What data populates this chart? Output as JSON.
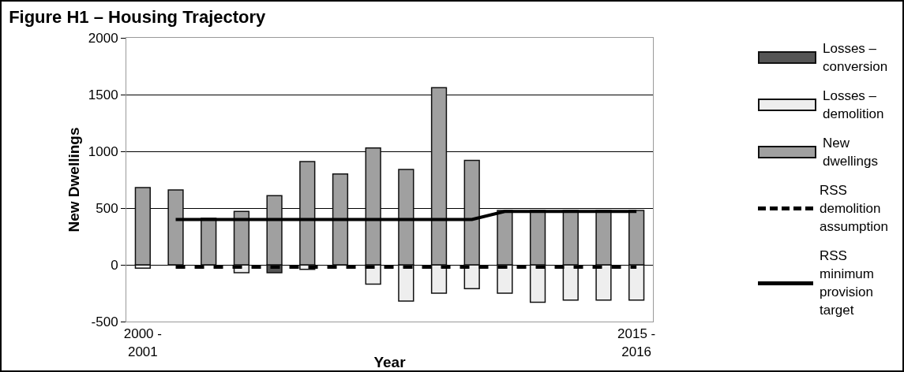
{
  "chart_data": {
    "type": "bar",
    "title": "Figure H1 – Housing Trajectory",
    "xlabel": "Year",
    "ylabel": "New Dwellings",
    "stacked": true,
    "categories": [
      "2000 - 2001",
      null,
      null,
      null,
      null,
      null,
      null,
      null,
      null,
      null,
      null,
      null,
      null,
      null,
      null,
      "2015 - 2016"
    ],
    "series": [
      {
        "name": "Losses – conversion",
        "color": "#555555",
        "values": [
          null,
          null,
          null,
          null,
          -70,
          null,
          null,
          null,
          null,
          null,
          null,
          null,
          null,
          null,
          null,
          null
        ]
      },
      {
        "name": "Losses – demolition",
        "color": "#eeeeee",
        "values": [
          -30,
          null,
          null,
          -70,
          null,
          -40,
          null,
          -170,
          -320,
          -250,
          -210,
          -250,
          -330,
          -310,
          -310,
          -310
        ]
      },
      {
        "name": "New dwellings",
        "color": "#a0a0a0",
        "values": [
          680,
          660,
          410,
          470,
          610,
          910,
          800,
          1030,
          840,
          1560,
          920,
          480,
          480,
          480,
          480,
          480
        ]
      },
      {
        "name": "RSS demolition assumption",
        "type": "line",
        "line_style": "dashed",
        "color": "#000000",
        "values": [
          null,
          -20,
          -20,
          -20,
          -20,
          -20,
          -20,
          -20,
          -20,
          -20,
          -20,
          -20,
          -20,
          -20,
          -20,
          -20
        ]
      },
      {
        "name": "RSS minimum provision target",
        "type": "line",
        "line_style": "solid",
        "color": "#000000",
        "values": [
          null,
          400,
          400,
          400,
          400,
          400,
          400,
          400,
          400,
          400,
          400,
          470,
          470,
          470,
          470,
          470
        ]
      }
    ],
    "ylim": [
      -500,
      2000
    ],
    "yticks": [
      -500,
      0,
      500,
      1000,
      1500,
      2000
    ],
    "grid": "y",
    "legend": "right",
    "marker": "none"
  }
}
